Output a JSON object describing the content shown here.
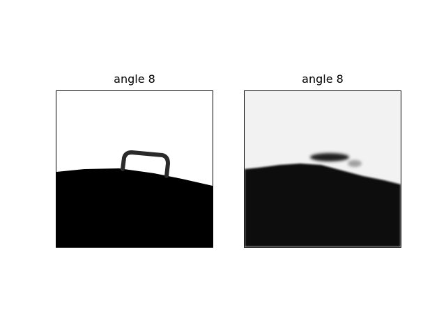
{
  "panels": [
    {
      "title": "angle 8",
      "kind": "ground-truth-binary"
    },
    {
      "title": "angle 8",
      "kind": "reconstruction-grayscale"
    }
  ],
  "colors": {
    "background": "#ffffff",
    "foreground": "#000000",
    "left_bg": "#ffffff",
    "right_bg": "#f2f2f2",
    "left_dark": "#000000",
    "right_dark": "#111111",
    "right_blob": "#222222"
  }
}
